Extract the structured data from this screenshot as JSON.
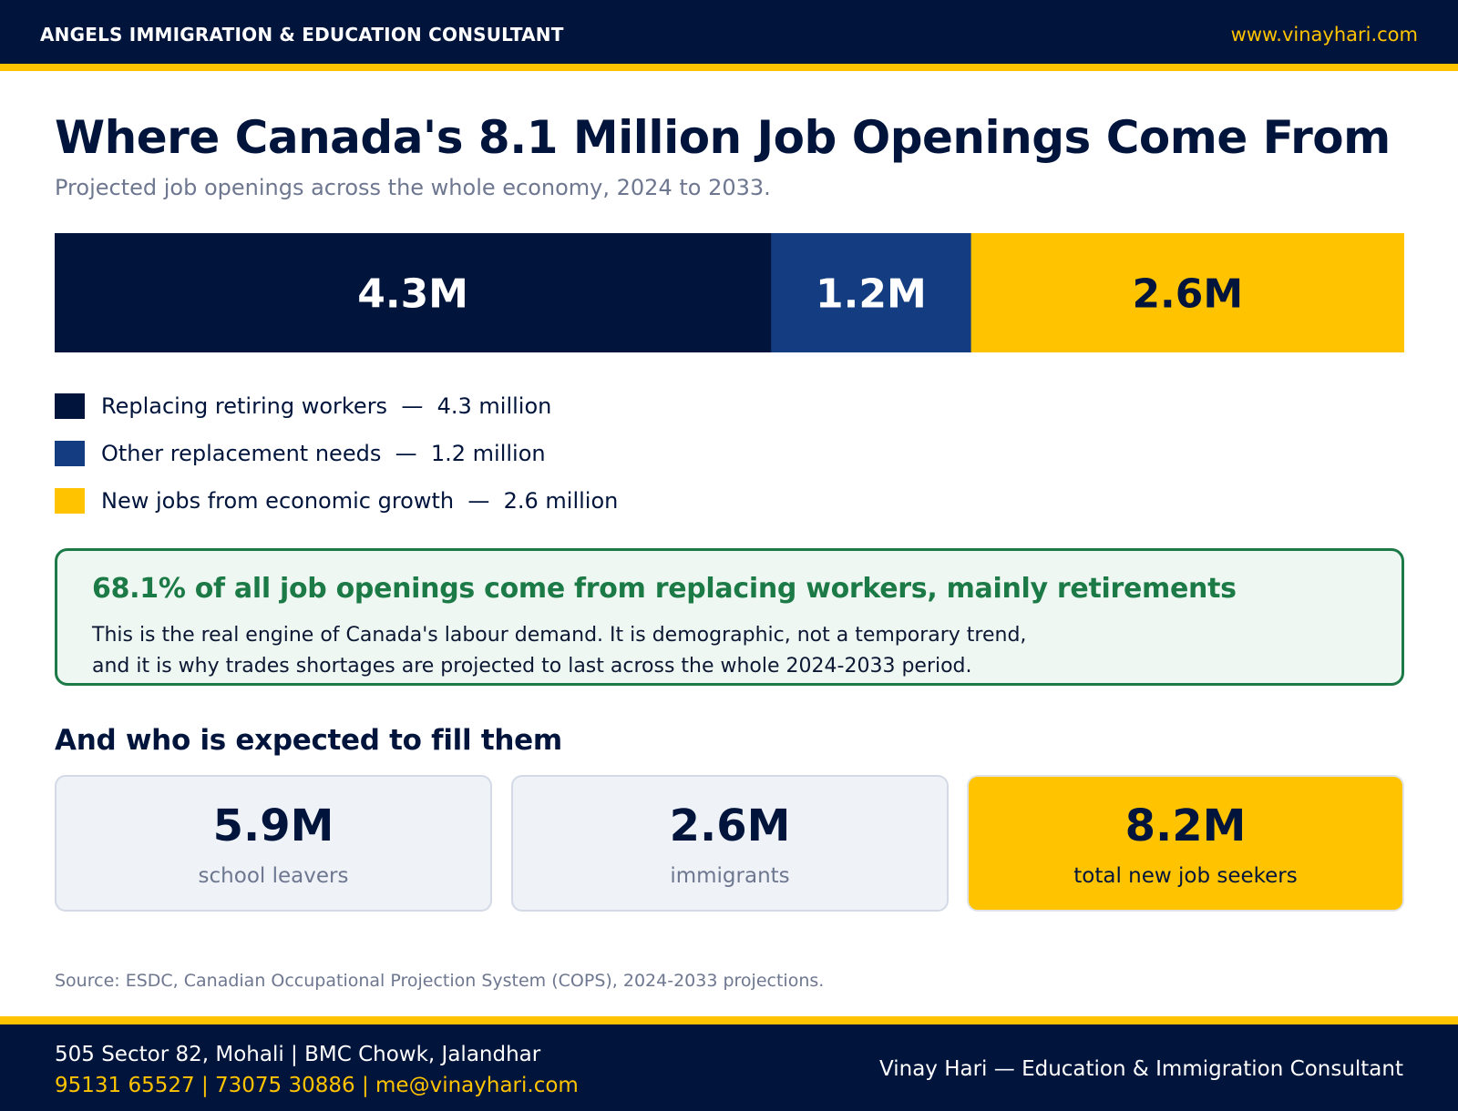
{
  "header": {
    "brand": "ANGELS IMMIGRATION & EDUCATION CONSULTANT",
    "website": "www.vinayhari.com"
  },
  "title": "Where Canada's 8.1 Million Job Openings Come From",
  "subtitle": "Projected job openings across the whole economy, 2024 to 2033.",
  "colors": {
    "navy": "#00143c",
    "blue": "#133d80",
    "gold": "#ffc300",
    "green": "#1c7a47"
  },
  "chart_data": {
    "type": "bar",
    "orientation": "horizontal-stacked-100",
    "categories": [
      "Replacing retiring workers",
      "Other replacement needs",
      "New jobs from economic growth"
    ],
    "values": [
      4.3,
      1.2,
      2.6
    ],
    "unit": "million",
    "data_labels": [
      "4.3M",
      "1.2M",
      "2.6M"
    ],
    "colors": [
      "#00143c",
      "#133d80",
      "#ffc300"
    ],
    "label_colors": [
      "#ffffff",
      "#ffffff",
      "#00143c"
    ],
    "title": "",
    "xlabel": "",
    "ylabel": "",
    "legend_position": "bottom-left",
    "grid": false
  },
  "legend": [
    {
      "label": "Replacing retiring workers",
      "value": "4.3 million",
      "color": "#00143c"
    },
    {
      "label": "Other replacement needs",
      "value": "1.2 million",
      "color": "#133d80"
    },
    {
      "label": "New jobs from economic growth",
      "value": "2.6 million",
      "color": "#ffc300"
    }
  ],
  "legend_separator": "—",
  "callout": {
    "title": "68.1% of all job openings come from replacing workers, mainly retirements",
    "line1": "This is the real engine of Canada's labour demand. It is demographic, not a temporary trend,",
    "line2": "and it is why trades shortages are projected to last across the whole 2024-2033 period."
  },
  "seekers": {
    "title": "And who is expected to fill them",
    "cards": [
      {
        "value": "5.9M",
        "label": "school leavers"
      },
      {
        "value": "2.6M",
        "label": "immigrants"
      },
      {
        "value": "8.2M",
        "label": "total new job seekers"
      }
    ]
  },
  "source": "Source: ESDC, Canadian Occupational Projection System (COPS), 2024-2033 projections.",
  "footer": {
    "address": "505 Sector 82, Mohali  |  BMC Chowk, Jalandhar",
    "contacts": "95131 65527  |  73075 30886  |  me@vinayhari.com",
    "name": "Vinay Hari  —  Education & Immigration Consultant"
  }
}
